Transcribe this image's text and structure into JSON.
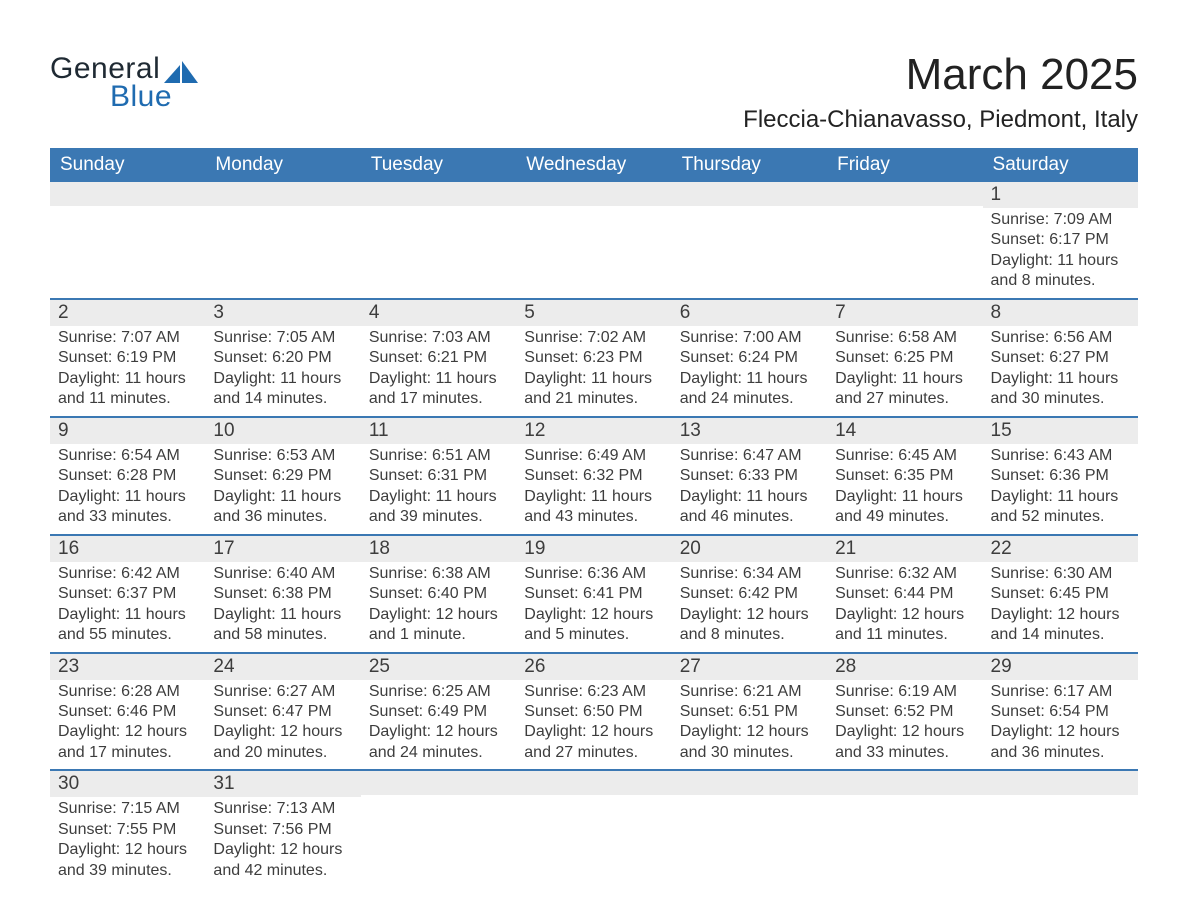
{
  "brand": {
    "part1": "General",
    "part2": "Blue"
  },
  "title": "March 2025",
  "location": "Fleccia-Chianavasso, Piedmont, Italy",
  "colors": {
    "header_bg": "#3b78b3",
    "row_line": "#3b78b3",
    "daynum_bg": "#ececec",
    "page_bg": "#ffffff",
    "text": "#333333",
    "brand_dark": "#1f2a33",
    "brand_blue": "#1f6bb0"
  },
  "typography": {
    "title_fontsize": 44,
    "location_fontsize": 24,
    "header_fontsize": 19,
    "daynum_fontsize": 19,
    "body_fontsize": 16,
    "font_family": "Arial"
  },
  "layout": {
    "columns": 7,
    "weeks": 6
  },
  "day_headers": [
    "Sunday",
    "Monday",
    "Tuesday",
    "Wednesday",
    "Thursday",
    "Friday",
    "Saturday"
  ],
  "weeks": [
    [
      {
        "n": "",
        "sunrise": "",
        "sunset": "",
        "daylight": ""
      },
      {
        "n": "",
        "sunrise": "",
        "sunset": "",
        "daylight": ""
      },
      {
        "n": "",
        "sunrise": "",
        "sunset": "",
        "daylight": ""
      },
      {
        "n": "",
        "sunrise": "",
        "sunset": "",
        "daylight": ""
      },
      {
        "n": "",
        "sunrise": "",
        "sunset": "",
        "daylight": ""
      },
      {
        "n": "",
        "sunrise": "",
        "sunset": "",
        "daylight": ""
      },
      {
        "n": "1",
        "sunrise": "Sunrise: 7:09 AM",
        "sunset": "Sunset: 6:17 PM",
        "daylight": "Daylight: 11 hours and 8 minutes."
      }
    ],
    [
      {
        "n": "2",
        "sunrise": "Sunrise: 7:07 AM",
        "sunset": "Sunset: 6:19 PM",
        "daylight": "Daylight: 11 hours and 11 minutes."
      },
      {
        "n": "3",
        "sunrise": "Sunrise: 7:05 AM",
        "sunset": "Sunset: 6:20 PM",
        "daylight": "Daylight: 11 hours and 14 minutes."
      },
      {
        "n": "4",
        "sunrise": "Sunrise: 7:03 AM",
        "sunset": "Sunset: 6:21 PM",
        "daylight": "Daylight: 11 hours and 17 minutes."
      },
      {
        "n": "5",
        "sunrise": "Sunrise: 7:02 AM",
        "sunset": "Sunset: 6:23 PM",
        "daylight": "Daylight: 11 hours and 21 minutes."
      },
      {
        "n": "6",
        "sunrise": "Sunrise: 7:00 AM",
        "sunset": "Sunset: 6:24 PM",
        "daylight": "Daylight: 11 hours and 24 minutes."
      },
      {
        "n": "7",
        "sunrise": "Sunrise: 6:58 AM",
        "sunset": "Sunset: 6:25 PM",
        "daylight": "Daylight: 11 hours and 27 minutes."
      },
      {
        "n": "8",
        "sunrise": "Sunrise: 6:56 AM",
        "sunset": "Sunset: 6:27 PM",
        "daylight": "Daylight: 11 hours and 30 minutes."
      }
    ],
    [
      {
        "n": "9",
        "sunrise": "Sunrise: 6:54 AM",
        "sunset": "Sunset: 6:28 PM",
        "daylight": "Daylight: 11 hours and 33 minutes."
      },
      {
        "n": "10",
        "sunrise": "Sunrise: 6:53 AM",
        "sunset": "Sunset: 6:29 PM",
        "daylight": "Daylight: 11 hours and 36 minutes."
      },
      {
        "n": "11",
        "sunrise": "Sunrise: 6:51 AM",
        "sunset": "Sunset: 6:31 PM",
        "daylight": "Daylight: 11 hours and 39 minutes."
      },
      {
        "n": "12",
        "sunrise": "Sunrise: 6:49 AM",
        "sunset": "Sunset: 6:32 PM",
        "daylight": "Daylight: 11 hours and 43 minutes."
      },
      {
        "n": "13",
        "sunrise": "Sunrise: 6:47 AM",
        "sunset": "Sunset: 6:33 PM",
        "daylight": "Daylight: 11 hours and 46 minutes."
      },
      {
        "n": "14",
        "sunrise": "Sunrise: 6:45 AM",
        "sunset": "Sunset: 6:35 PM",
        "daylight": "Daylight: 11 hours and 49 minutes."
      },
      {
        "n": "15",
        "sunrise": "Sunrise: 6:43 AM",
        "sunset": "Sunset: 6:36 PM",
        "daylight": "Daylight: 11 hours and 52 minutes."
      }
    ],
    [
      {
        "n": "16",
        "sunrise": "Sunrise: 6:42 AM",
        "sunset": "Sunset: 6:37 PM",
        "daylight": "Daylight: 11 hours and 55 minutes."
      },
      {
        "n": "17",
        "sunrise": "Sunrise: 6:40 AM",
        "sunset": "Sunset: 6:38 PM",
        "daylight": "Daylight: 11 hours and 58 minutes."
      },
      {
        "n": "18",
        "sunrise": "Sunrise: 6:38 AM",
        "sunset": "Sunset: 6:40 PM",
        "daylight": "Daylight: 12 hours and 1 minute."
      },
      {
        "n": "19",
        "sunrise": "Sunrise: 6:36 AM",
        "sunset": "Sunset: 6:41 PM",
        "daylight": "Daylight: 12 hours and 5 minutes."
      },
      {
        "n": "20",
        "sunrise": "Sunrise: 6:34 AM",
        "sunset": "Sunset: 6:42 PM",
        "daylight": "Daylight: 12 hours and 8 minutes."
      },
      {
        "n": "21",
        "sunrise": "Sunrise: 6:32 AM",
        "sunset": "Sunset: 6:44 PM",
        "daylight": "Daylight: 12 hours and 11 minutes."
      },
      {
        "n": "22",
        "sunrise": "Sunrise: 6:30 AM",
        "sunset": "Sunset: 6:45 PM",
        "daylight": "Daylight: 12 hours and 14 minutes."
      }
    ],
    [
      {
        "n": "23",
        "sunrise": "Sunrise: 6:28 AM",
        "sunset": "Sunset: 6:46 PM",
        "daylight": "Daylight: 12 hours and 17 minutes."
      },
      {
        "n": "24",
        "sunrise": "Sunrise: 6:27 AM",
        "sunset": "Sunset: 6:47 PM",
        "daylight": "Daylight: 12 hours and 20 minutes."
      },
      {
        "n": "25",
        "sunrise": "Sunrise: 6:25 AM",
        "sunset": "Sunset: 6:49 PM",
        "daylight": "Daylight: 12 hours and 24 minutes."
      },
      {
        "n": "26",
        "sunrise": "Sunrise: 6:23 AM",
        "sunset": "Sunset: 6:50 PM",
        "daylight": "Daylight: 12 hours and 27 minutes."
      },
      {
        "n": "27",
        "sunrise": "Sunrise: 6:21 AM",
        "sunset": "Sunset: 6:51 PM",
        "daylight": "Daylight: 12 hours and 30 minutes."
      },
      {
        "n": "28",
        "sunrise": "Sunrise: 6:19 AM",
        "sunset": "Sunset: 6:52 PM",
        "daylight": "Daylight: 12 hours and 33 minutes."
      },
      {
        "n": "29",
        "sunrise": "Sunrise: 6:17 AM",
        "sunset": "Sunset: 6:54 PM",
        "daylight": "Daylight: 12 hours and 36 minutes."
      }
    ],
    [
      {
        "n": "30",
        "sunrise": "Sunrise: 7:15 AM",
        "sunset": "Sunset: 7:55 PM",
        "daylight": "Daylight: 12 hours and 39 minutes."
      },
      {
        "n": "31",
        "sunrise": "Sunrise: 7:13 AM",
        "sunset": "Sunset: 7:56 PM",
        "daylight": "Daylight: 12 hours and 42 minutes."
      },
      {
        "n": "",
        "sunrise": "",
        "sunset": "",
        "daylight": ""
      },
      {
        "n": "",
        "sunrise": "",
        "sunset": "",
        "daylight": ""
      },
      {
        "n": "",
        "sunrise": "",
        "sunset": "",
        "daylight": ""
      },
      {
        "n": "",
        "sunrise": "",
        "sunset": "",
        "daylight": ""
      },
      {
        "n": "",
        "sunrise": "",
        "sunset": "",
        "daylight": ""
      }
    ]
  ]
}
